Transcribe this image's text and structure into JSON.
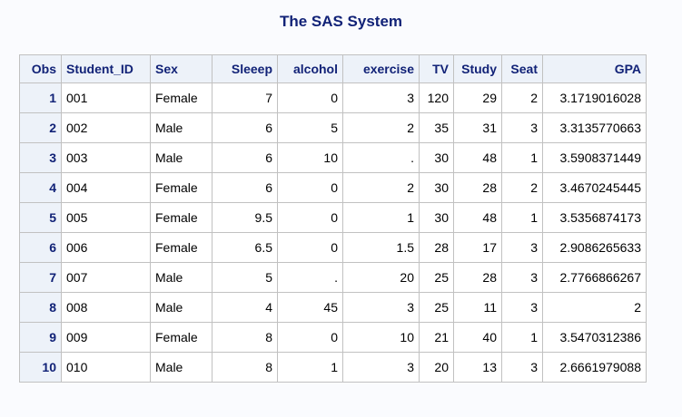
{
  "title": "The SAS System",
  "columns": [
    "Obs",
    "Student_ID",
    "Sex",
    "Sleeep",
    "alcohol",
    "exercise",
    "TV",
    "Study",
    "Seat",
    "GPA"
  ],
  "rows": [
    {
      "obs": "1",
      "student_id": "001",
      "sex": "Female",
      "sleep": "7",
      "alcohol": "0",
      "exercise": "3",
      "tv": "120",
      "study": "29",
      "seat": "2",
      "gpa": "3.1719016028"
    },
    {
      "obs": "2",
      "student_id": "002",
      "sex": "Male",
      "sleep": "6",
      "alcohol": "5",
      "exercise": "2",
      "tv": "35",
      "study": "31",
      "seat": "3",
      "gpa": "3.3135770663"
    },
    {
      "obs": "3",
      "student_id": "003",
      "sex": "Male",
      "sleep": "6",
      "alcohol": "10",
      "exercise": ".",
      "tv": "30",
      "study": "48",
      "seat": "1",
      "gpa": "3.5908371449"
    },
    {
      "obs": "4",
      "student_id": "004",
      "sex": "Female",
      "sleep": "6",
      "alcohol": "0",
      "exercise": "2",
      "tv": "30",
      "study": "28",
      "seat": "2",
      "gpa": "3.4670245445"
    },
    {
      "obs": "5",
      "student_id": "005",
      "sex": "Female",
      "sleep": "9.5",
      "alcohol": "0",
      "exercise": "1",
      "tv": "30",
      "study": "48",
      "seat": "1",
      "gpa": "3.5356874173"
    },
    {
      "obs": "6",
      "student_id": "006",
      "sex": "Female",
      "sleep": "6.5",
      "alcohol": "0",
      "exercise": "1.5",
      "tv": "28",
      "study": "17",
      "seat": "3",
      "gpa": "2.9086265633"
    },
    {
      "obs": "7",
      "student_id": "007",
      "sex": "Male",
      "sleep": "5",
      "alcohol": ".",
      "exercise": "20",
      "tv": "25",
      "study": "28",
      "seat": "3",
      "gpa": "2.7766866267"
    },
    {
      "obs": "8",
      "student_id": "008",
      "sex": "Male",
      "sleep": "4",
      "alcohol": "45",
      "exercise": "3",
      "tv": "25",
      "study": "11",
      "seat": "3",
      "gpa": "2"
    },
    {
      "obs": "9",
      "student_id": "009",
      "sex": "Female",
      "sleep": "8",
      "alcohol": "0",
      "exercise": "10",
      "tv": "21",
      "study": "40",
      "seat": "1",
      "gpa": "3.5470312386"
    },
    {
      "obs": "10",
      "student_id": "010",
      "sex": "Male",
      "sleep": "8",
      "alcohol": "1",
      "exercise": "3",
      "tv": "20",
      "study": "13",
      "seat": "3",
      "gpa": "2.6661979088"
    }
  ]
}
